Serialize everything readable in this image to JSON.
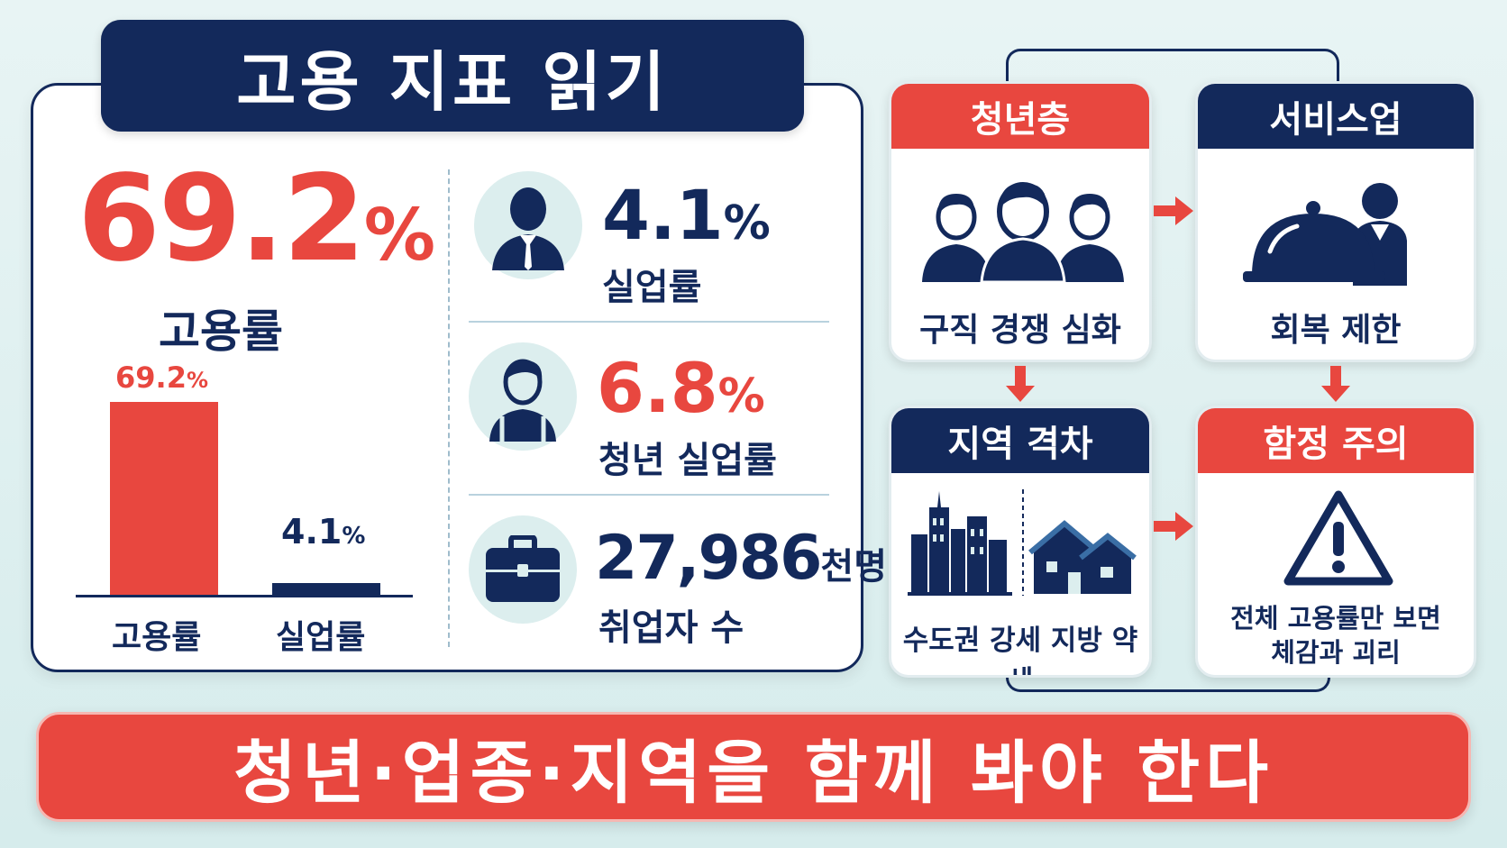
{
  "title": "고용 지표 읽기",
  "employment": {
    "value": "69.2",
    "unit": "%",
    "label": "고용률"
  },
  "bar_chart": {
    "categories": [
      "고용률",
      "실업률"
    ],
    "values": [
      69.2,
      4.1
    ],
    "value_labels": [
      {
        "value": "69.2",
        "unit": "%"
      },
      {
        "value": "4.1",
        "unit": "%"
      }
    ],
    "colors": [
      "#e8473f",
      "#13295b"
    ]
  },
  "stats": [
    {
      "value": "4.1",
      "unit": "%",
      "label": "실업률",
      "icon": "businessman-icon"
    },
    {
      "value": "6.8",
      "unit": "%",
      "label": "청년 실업률",
      "icon": "young-person-icon"
    },
    {
      "value": "27,986",
      "unit": "천명",
      "label": "취업자 수",
      "icon": "briefcase-icon"
    }
  ],
  "flow": {
    "youth": {
      "title": "청년층",
      "text": "구직 경쟁 심화",
      "icon": "people-group-icon"
    },
    "service": {
      "title": "서비스업",
      "text": "회복 제한",
      "icon": "cloche-waiter-icon"
    },
    "region": {
      "title": "지역 격차",
      "text": "수도권 강세 지방 약세",
      "icon": "city-vs-houses-icon"
    },
    "caution": {
      "title": "함정 주의",
      "text_line1": "전체 고용률만 보면",
      "text_line2": "체감과 괴리",
      "icon": "warning-icon"
    }
  },
  "banner": "청년·업종·지역을 함께 봐야 한다",
  "colors": {
    "navy": "#13295b",
    "red": "#e8473f",
    "background": "#e1f1f1"
  }
}
